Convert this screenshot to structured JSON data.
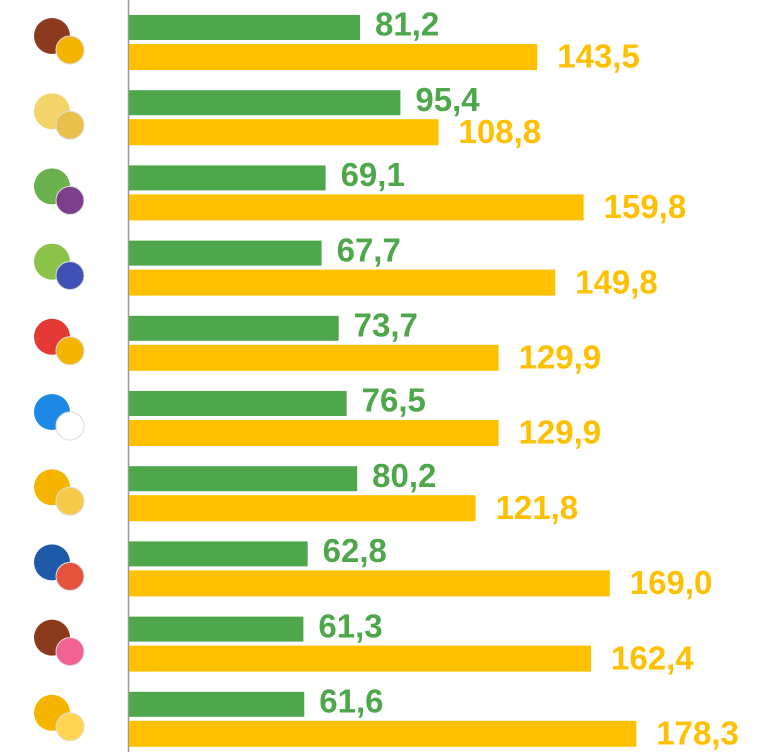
{
  "chart_data": {
    "type": "hbar",
    "categories": [
      null,
      null,
      null,
      null,
      null,
      null,
      null,
      null,
      null,
      null
    ],
    "xlim": [
      0,
      200
    ],
    "series": [
      {
        "color": "#4ea74a",
        "values": [
          81.2,
          95.4,
          69.1,
          67.7,
          73.7,
          76.5,
          80.2,
          62.8,
          61.3,
          61.6
        ],
        "value_labels": [
          "81,2",
          "95,4",
          "69,1",
          "67,7",
          "73,7",
          "76,5",
          "80,2",
          "62,8",
          "61,3",
          "61,6"
        ]
      },
      {
        "color": "#ffc000",
        "values": [
          143.5,
          108.8,
          159.8,
          149.8,
          129.9,
          129.9,
          121.8,
          169.0,
          162.4,
          178.3
        ],
        "value_labels": [
          "143,5",
          "108,8",
          "159,8",
          "149,8",
          "129,9",
          "129,9",
          "121,8",
          "169,0",
          "162,4",
          "178,3"
        ]
      }
    ]
  }
}
